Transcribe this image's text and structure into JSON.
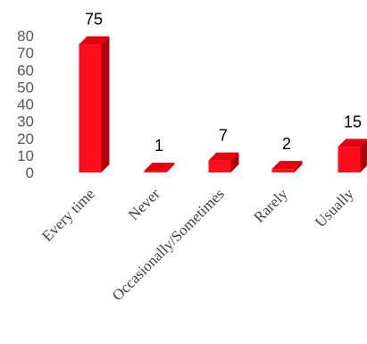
{
  "chart_data": {
    "type": "bar",
    "categories": [
      "Every time",
      "Never",
      "Occasionally/Sometimes",
      "Rarely",
      "Usually"
    ],
    "values": [
      75,
      1,
      7,
      2,
      15
    ],
    "data_labels": [
      "75",
      "1",
      "7",
      "2",
      "15"
    ],
    "yticks": [
      "0",
      "10",
      "20",
      "30",
      "40",
      "50",
      "60",
      "70",
      "80"
    ],
    "ylim": [
      0,
      80
    ],
    "style": "3d",
    "colors": {
      "front": "#ff0d1a",
      "side": "#b3000c",
      "top": "#e0000f"
    },
    "grid": false,
    "legend": "none"
  }
}
